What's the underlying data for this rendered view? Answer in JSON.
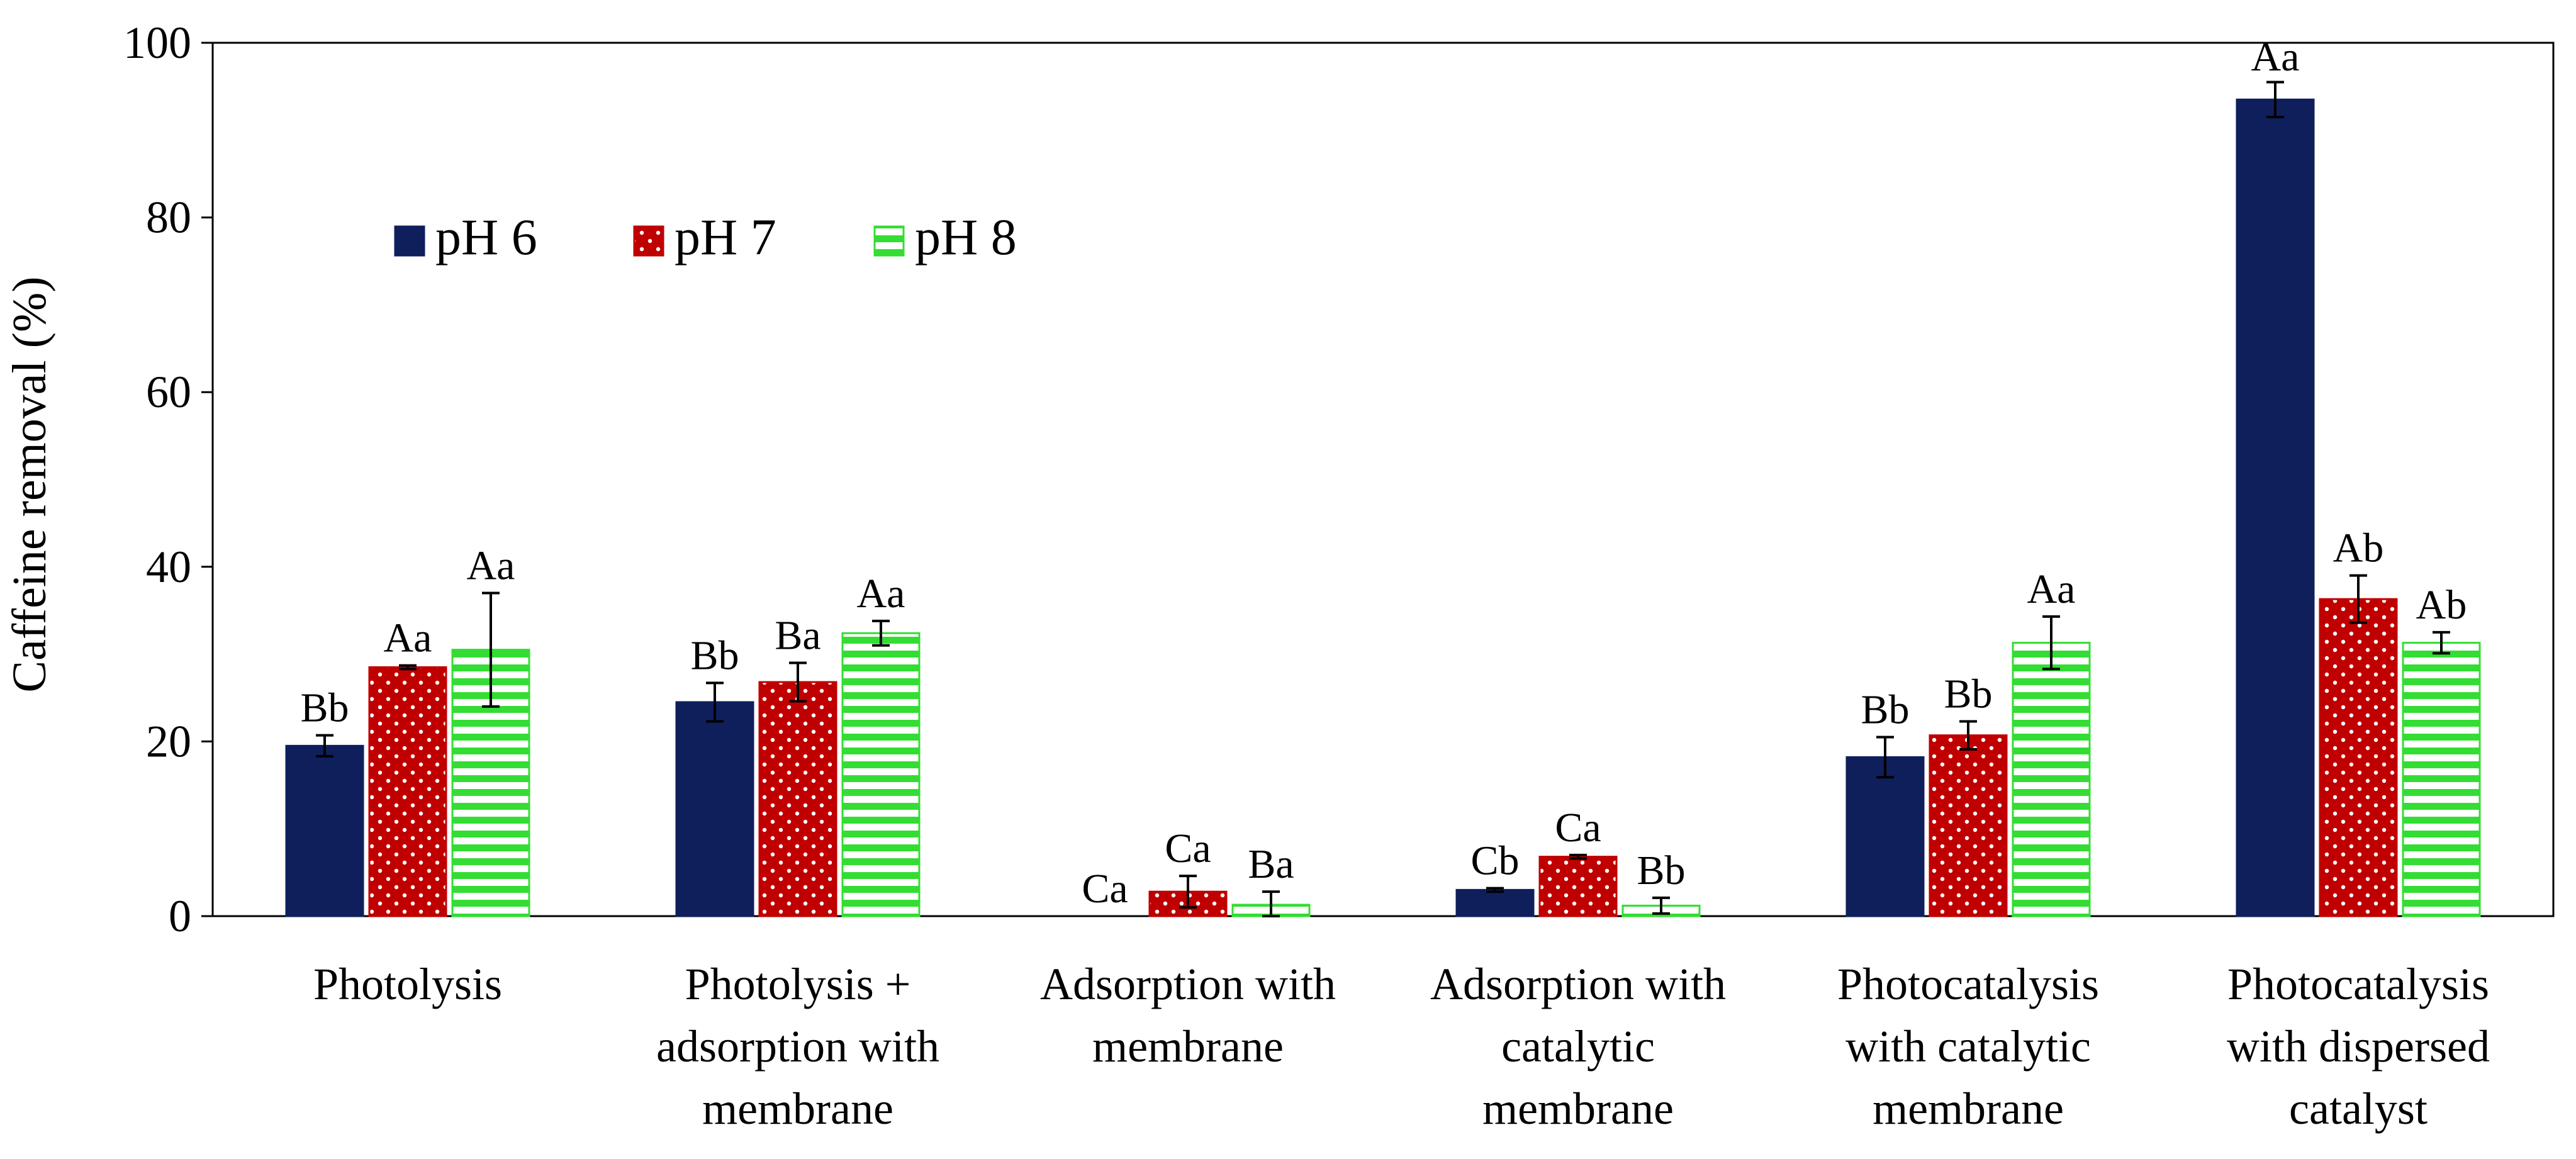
{
  "chart_data": {
    "type": "bar",
    "title": "",
    "xlabel": "",
    "ylabel": "Caffeine removal (%)",
    "ylim": [
      0,
      100
    ],
    "yticks": [
      0,
      20,
      40,
      60,
      80,
      100
    ],
    "grid": false,
    "legend_position": "top-left",
    "categories": [
      [
        "Photolysis"
      ],
      [
        "Photolysis +",
        "adsorption with",
        "membrane"
      ],
      [
        "Adsorption with",
        "membrane"
      ],
      [
        "Adsorption with",
        "catalytic",
        "membrane"
      ],
      [
        "Photocatalysis",
        "with catalytic",
        "membrane"
      ],
      [
        "Photocatalysis",
        "with dispersed",
        "catalyst"
      ]
    ],
    "series": [
      {
        "name": "pH 6",
        "color": "#0f1f5c",
        "pattern": "solid",
        "values": [
          19.5,
          24.5,
          0,
          3.0,
          18.2,
          93.5
        ],
        "errors": [
          1.2,
          2.2,
          0,
          0.2,
          2.3,
          2.0
        ],
        "labels": [
          "Bb",
          "Bb",
          "Ca",
          "Cb",
          "Bb",
          "Aa"
        ]
      },
      {
        "name": "pH 7",
        "color": "#c00000",
        "pattern": "dots",
        "values": [
          28.5,
          26.8,
          2.8,
          6.8,
          20.7,
          36.3
        ],
        "errors": [
          0.2,
          2.2,
          1.8,
          0.2,
          1.6,
          2.7
        ],
        "labels": [
          "Aa",
          "Ba",
          "Ca",
          "Ca",
          "Bb",
          "Ab"
        ]
      },
      {
        "name": "pH 8",
        "color": "#33dd33",
        "pattern": "hstripes",
        "values": [
          30.5,
          32.4,
          1.3,
          1.2,
          31.3,
          31.3
        ],
        "errors": [
          6.5,
          1.4,
          1.5,
          0.9,
          3.0,
          1.2
        ],
        "labels": [
          "Aa",
          "Aa",
          "Ba",
          "Bb",
          "Aa",
          "Ab"
        ]
      }
    ]
  }
}
